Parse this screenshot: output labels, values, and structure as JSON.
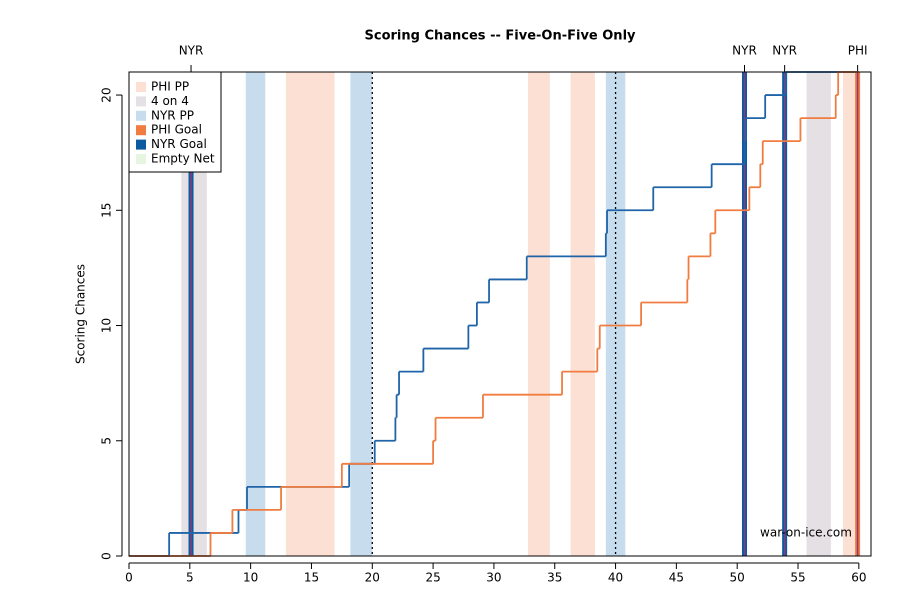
{
  "chart_data": {
    "type": "step",
    "title": "Scoring Chances -- Five-On-Five Only",
    "y_label": "Scoring Chances",
    "watermark": "war-on-ice.com",
    "xlim": [
      0,
      61
    ],
    "ylim": [
      0,
      21
    ],
    "xticks": [
      0,
      5,
      10,
      15,
      20,
      25,
      30,
      35,
      40,
      45,
      50,
      55,
      60
    ],
    "yticks": [
      0,
      5,
      10,
      15,
      20
    ],
    "period_lines": [
      20,
      40,
      60
    ],
    "legend_position": "top-left",
    "legend": [
      {
        "name": "PHI PP",
        "color": "#fde0d4"
      },
      {
        "name": "4 on 4",
        "color": "#e4e0e3"
      },
      {
        "name": "NYR PP",
        "color": "#c7dcec"
      },
      {
        "name": "PHI Goal",
        "color": "#f07c40"
      },
      {
        "name": "NYR Goal",
        "color": "#0b5aa0"
      },
      {
        "name": "Empty Net",
        "color": "#e5f5e0"
      }
    ],
    "regions": [
      {
        "xmin": 12.9,
        "xmax": 16.9,
        "color": "#fde0d4"
      },
      {
        "xmin": 32.8,
        "xmax": 34.6,
        "color": "#fde0d4"
      },
      {
        "xmin": 36.3,
        "xmax": 38.3,
        "color": "#fde0d4"
      },
      {
        "xmin": 58.7,
        "xmax": 60.0,
        "color": "#fde0d4"
      },
      {
        "xmin": 4.3,
        "xmax": 6.4,
        "color": "#e4e0e3"
      },
      {
        "xmin": 55.7,
        "xmax": 57.7,
        "color": "#e4e0e3"
      },
      {
        "xmin": 9.6,
        "xmax": 11.2,
        "color": "#c7dcec"
      },
      {
        "xmin": 18.2,
        "xmax": 20.0,
        "color": "#c7dcec"
      },
      {
        "xmin": 39.2,
        "xmax": 40.8,
        "color": "#c7dcec"
      }
    ],
    "goals": [
      {
        "label": "NYR",
        "x": 5.1,
        "color": "#0b5aa0"
      },
      {
        "label": "NYR",
        "x": 50.6,
        "color": "#0b5aa0"
      },
      {
        "label": "NYR",
        "x": 53.9,
        "color": "#0b5aa0"
      },
      {
        "label": "PHI",
        "x": 59.9,
        "color": "#f07c40"
      }
    ],
    "series": [
      {
        "name": "NYR",
        "color": "#1f64a8",
        "x": [
          0,
          3.3,
          9.0,
          9.7,
          18.1,
          20.2,
          21.9,
          22.0,
          22.2,
          24.2,
          27.9,
          28.6,
          29.6,
          32.7,
          39.2,
          39.3,
          43.1,
          47.9,
          50.6,
          50.7,
          52.3,
          54.0,
          60.0
        ],
        "values": [
          0,
          1,
          2,
          3,
          4,
          5,
          6,
          7,
          8,
          9,
          10,
          11,
          12,
          13,
          14,
          15,
          16,
          17,
          18,
          19,
          20,
          21,
          21
        ]
      },
      {
        "name": "PHI",
        "color": "#f07c40",
        "x": [
          0,
          6.7,
          8.5,
          12.5,
          17.5,
          25.0,
          25.2,
          29.1,
          35.6,
          38.5,
          38.7,
          42.1,
          45.9,
          46.0,
          47.8,
          48.2,
          51.0,
          51.9,
          52.1,
          55.2,
          58.1,
          58.3,
          60.0
        ],
        "values": [
          0,
          1,
          2,
          3,
          4,
          5,
          6,
          7,
          8,
          9,
          10,
          11,
          12,
          13,
          14,
          15,
          16,
          17,
          18,
          19,
          20,
          21,
          21
        ]
      }
    ]
  }
}
